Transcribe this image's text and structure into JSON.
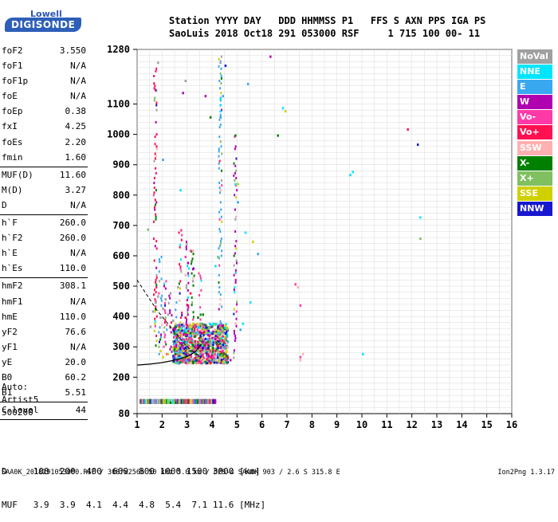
{
  "logo": {
    "line1": "Lowell",
    "line2": "DIGISONDE"
  },
  "header": {
    "line1": "Station YYYY DAY   DDD HHMMSS P1   FFS S AXN PPS IGA PS",
    "line2": "SaoLuis 2018 Oct18 291 053000 RSF     1 715 100 00- 11"
  },
  "params": [
    {
      "name": "foF2",
      "value": "3.550"
    },
    {
      "name": "foF1",
      "value": "N/A"
    },
    {
      "name": "foF1p",
      "value": "N/A"
    },
    {
      "name": "foE",
      "value": "N/A"
    },
    {
      "name": "foEp",
      "value": "0.38"
    },
    {
      "name": "fxI",
      "value": "4.25"
    },
    {
      "name": "foEs",
      "value": "2.20"
    },
    {
      "name": "fmin",
      "value": "1.60"
    },
    {
      "sep": true
    },
    {
      "name": "MUF(D)",
      "value": "11.60"
    },
    {
      "name": "M(D)",
      "value": "3.27"
    },
    {
      "name": "D",
      "value": "N/A"
    },
    {
      "sep": true
    },
    {
      "name": "h`F",
      "value": "260.0"
    },
    {
      "name": "h`F2",
      "value": "260.0"
    },
    {
      "name": "h`E",
      "value": "N/A"
    },
    {
      "name": "h`Es",
      "value": "110.0"
    },
    {
      "sep": true
    },
    {
      "name": "hmF2",
      "value": "308.1"
    },
    {
      "name": "hmF1",
      "value": "N/A"
    },
    {
      "name": "hmE",
      "value": "110.0"
    },
    {
      "name": "yF2",
      "value": "76.6"
    },
    {
      "name": "yF1",
      "value": "N/A"
    },
    {
      "name": "yE",
      "value": "20.0"
    },
    {
      "name": "B0",
      "value": "60.2"
    },
    {
      "name": "B1",
      "value": "5.51"
    },
    {
      "sep": true
    },
    {
      "name": "C-level",
      "value": "44"
    },
    {
      "sep": true
    }
  ],
  "auto": [
    "Auto:",
    "Artist5",
    "500200"
  ],
  "legend": [
    {
      "label": "NoVal",
      "color": "#a0a0a0"
    },
    {
      "label": "NNE",
      "color": "#00e5ff"
    },
    {
      "label": "E",
      "color": "#3aa8f0"
    },
    {
      "label": "W",
      "color": "#b000b0"
    },
    {
      "label": "Vo-",
      "color": "#ff3aa8"
    },
    {
      "label": "Vo+",
      "color": "#ff1050"
    },
    {
      "label": "SSW",
      "color": "#ffb0b0"
    },
    {
      "label": "X-",
      "color": "#008000"
    },
    {
      "label": "X+",
      "color": "#80c060"
    },
    {
      "label": "SSE",
      "color": "#d0d000"
    },
    {
      "label": "NNW",
      "color": "#1818d0"
    }
  ],
  "muf_table": {
    "line1": "D     100  200  400  600  800 1000 1500 3000 [km]",
    "line2": "MUF   3.9  3.9  4.1  4.4  4.8  5.4  7.1 11.6 [MHz]"
  },
  "footer": "SAA0K_2018291053000.RSF / 300fx256h 50 kHz 5.0 km / DPS-4 SAA0K 903 / 2.6 S 315.8 E",
  "version": "Ion2Png 1.3.17",
  "chart_data": {
    "type": "scatter",
    "title": "",
    "xlabel": "",
    "ylabel": "",
    "xlim": [
      1,
      16
    ],
    "ylim": [
      80,
      1280
    ],
    "xticks": [
      1,
      2,
      3,
      4,
      5,
      6,
      7,
      8,
      9,
      10,
      11,
      12,
      13,
      14,
      15,
      16
    ],
    "yticks": [
      80,
      200,
      300,
      400,
      500,
      600,
      700,
      800,
      900,
      1000,
      1100,
      1280
    ],
    "series": [
      {
        "name": "NoVal",
        "color": "#a0a0a0",
        "points": [
          [
            1.6,
            420
          ],
          [
            1.7,
            450
          ],
          [
            1.8,
            470
          ],
          [
            1.9,
            400
          ],
          [
            2.0,
            430
          ],
          [
            2.1,
            460
          ],
          [
            2.2,
            410
          ],
          [
            2.3,
            480
          ],
          [
            2.4,
            390
          ],
          [
            2.6,
            500
          ],
          [
            1.5,
            370
          ],
          [
            1.8,
            1240
          ],
          [
            2.9,
            1180
          ],
          [
            3.2,
            520
          ],
          [
            4.3,
            1240
          ]
        ]
      },
      {
        "name": "NNE",
        "color": "#00e5ff",
        "points": [
          [
            4.3,
            1100
          ],
          [
            4.3,
            1080
          ],
          [
            4.3,
            1120
          ],
          [
            4.9,
            840
          ],
          [
            5.3,
            680
          ],
          [
            6.8,
            1090
          ],
          [
            9.6,
            880
          ],
          [
            9.5,
            870
          ],
          [
            10.0,
            280
          ],
          [
            12.3,
            730
          ],
          [
            4.1,
            570
          ],
          [
            5.2,
            380
          ],
          [
            2.7,
            820
          ],
          [
            5.5,
            450
          ]
        ]
      },
      {
        "name": "E",
        "color": "#3aa8f0",
        "points": [
          [
            4.4,
            1130
          ],
          [
            4.3,
            1060
          ],
          [
            5.0,
            780
          ],
          [
            5.1,
            360
          ],
          [
            3.8,
            330
          ],
          [
            4.0,
            300
          ],
          [
            4.2,
            280
          ],
          [
            3.9,
            350
          ],
          [
            4.6,
            320
          ],
          [
            4.5,
            300
          ],
          [
            2.0,
            920
          ],
          [
            5.4,
            1170
          ],
          [
            5.8,
            610
          ]
        ]
      },
      {
        "name": "W",
        "color": "#b000b0",
        "points": [
          [
            3.4,
            300
          ],
          [
            3.6,
            320
          ],
          [
            3.8,
            310
          ],
          [
            4.1,
            330
          ],
          [
            4.3,
            300
          ],
          [
            3.0,
            580
          ],
          [
            3.2,
            560
          ],
          [
            3.5,
            350
          ],
          [
            4.7,
            260
          ],
          [
            2.8,
            1140
          ],
          [
            1.7,
            1150
          ],
          [
            6.3,
            1260
          ],
          [
            3.7,
            1130
          ]
        ]
      },
      {
        "name": "Vo-",
        "color": "#ff3aa8",
        "points": [
          [
            3.0,
            280
          ],
          [
            3.2,
            290
          ],
          [
            3.3,
            310
          ],
          [
            3.6,
            280
          ],
          [
            3.7,
            300
          ],
          [
            3.9,
            290
          ],
          [
            4.0,
            270
          ],
          [
            4.4,
            290
          ],
          [
            3.1,
            330
          ],
          [
            3.5,
            300
          ],
          [
            7.3,
            510
          ],
          [
            7.5,
            440
          ],
          [
            7.5,
            270
          ],
          [
            3.1,
            620
          ],
          [
            2.9,
            600
          ]
        ]
      },
      {
        "name": "Vo+",
        "color": "#ff1050",
        "points": [
          [
            3.3,
            300
          ],
          [
            3.4,
            320
          ],
          [
            3.5,
            290
          ],
          [
            3.7,
            310
          ],
          [
            3.8,
            280
          ],
          [
            4.1,
            290
          ],
          [
            4.2,
            310
          ],
          [
            3.6,
            350
          ],
          [
            4.6,
            270
          ],
          [
            11.8,
            1020
          ],
          [
            2.9,
            400
          ],
          [
            3.0,
            440
          ],
          [
            3.1,
            480
          ]
        ]
      },
      {
        "name": "SSW",
        "color": "#ffb0b0",
        "points": [
          [
            7.4,
            500
          ],
          [
            7.6,
            280
          ],
          [
            7.5,
            260
          ],
          [
            3.2,
            620
          ],
          [
            2.9,
            540
          ],
          [
            4.9,
            380
          ]
        ]
      },
      {
        "name": "X-",
        "color": "#008000",
        "points": [
          [
            3.1,
            290
          ],
          [
            3.3,
            280
          ],
          [
            3.5,
            310
          ],
          [
            3.8,
            320
          ],
          [
            4.0,
            300
          ],
          [
            4.3,
            280
          ],
          [
            3.6,
            410
          ],
          [
            3.4,
            400
          ],
          [
            2.3,
            120
          ],
          [
            2.5,
            120
          ],
          [
            6.6,
            1000
          ],
          [
            3.9,
            1060
          ],
          [
            4.9,
            1000
          ]
        ]
      },
      {
        "name": "X+",
        "color": "#80c060",
        "points": [
          [
            3.0,
            310
          ],
          [
            3.2,
            300
          ],
          [
            3.4,
            290
          ],
          [
            3.7,
            290
          ],
          [
            3.9,
            310
          ],
          [
            4.2,
            290
          ],
          [
            3.5,
            380
          ],
          [
            1.4,
            690
          ],
          [
            12.3,
            660
          ],
          [
            4.2,
            600
          ]
        ]
      },
      {
        "name": "SSE",
        "color": "#d0d000",
        "points": [
          [
            2.6,
            300
          ],
          [
            2.7,
            280
          ],
          [
            2.8,
            290
          ],
          [
            2.9,
            310
          ],
          [
            3.0,
            270
          ],
          [
            3.1,
            300
          ],
          [
            1.9,
            290
          ],
          [
            2.0,
            270
          ],
          [
            2.2,
            280
          ],
          [
            2.4,
            300
          ],
          [
            6.9,
            1080
          ],
          [
            5.0,
            840
          ],
          [
            5.6,
            650
          ]
        ]
      },
      {
        "name": "NNW",
        "color": "#1818d0",
        "points": [
          [
            3.4,
            310
          ],
          [
            3.6,
            300
          ],
          [
            3.8,
            300
          ],
          [
            4.0,
            310
          ],
          [
            4.2,
            300
          ],
          [
            4.4,
            310
          ],
          [
            3.7,
            330
          ],
          [
            3.5,
            340
          ],
          [
            12.2,
            970
          ],
          [
            4.5,
            1230
          ],
          [
            4.2,
            370
          ]
        ]
      }
    ],
    "bottom_trace": {
      "x_start": 1.1,
      "x_end": 4.1,
      "height": 120
    },
    "vertical_streaks": [
      {
        "x": 1.7,
        "y_from": 300,
        "y_to": 1240,
        "color": "#ff1050"
      },
      {
        "x": 1.9,
        "y_from": 280,
        "y_to": 600,
        "color": "#3aa8f0"
      },
      {
        "x": 2.1,
        "y_from": 280,
        "y_to": 520,
        "color": "#ff3aa8"
      },
      {
        "x": 2.3,
        "y_from": 280,
        "y_to": 480,
        "color": "#b000b0"
      },
      {
        "x": 2.5,
        "y_from": 290,
        "y_to": 450,
        "color": "#3aa8f0"
      },
      {
        "x": 2.7,
        "y_from": 280,
        "y_to": 700,
        "color": "#ff1050"
      },
      {
        "x": 3.0,
        "y_from": 290,
        "y_to": 650,
        "color": "#b000b0"
      },
      {
        "x": 3.2,
        "y_from": 290,
        "y_to": 620,
        "color": "#008000"
      },
      {
        "x": 3.5,
        "y_from": 290,
        "y_to": 560,
        "color": "#ff3aa8"
      },
      {
        "x": 4.3,
        "y_from": 260,
        "y_to": 1260,
        "color": "#3aa8f0"
      },
      {
        "x": 4.9,
        "y_from": 260,
        "y_to": 1000,
        "color": "#b000b0"
      }
    ],
    "dense_region": {
      "x_from": 2.4,
      "x_to": 4.6,
      "y_from": 250,
      "y_to": 380
    },
    "profile_curve": [
      [
        1.0,
        240
      ],
      [
        1.5,
        243
      ],
      [
        2.0,
        248
      ],
      [
        2.5,
        256
      ],
      [
        3.0,
        268
      ],
      [
        3.3,
        282
      ],
      [
        3.5,
        300
      ],
      [
        3.55,
        308
      ]
    ],
    "dashed_curve": [
      [
        1.0,
        520
      ],
      [
        1.4,
        470
      ],
      [
        1.8,
        420
      ],
      [
        2.2,
        380
      ],
      [
        2.6,
        340
      ],
      [
        3.0,
        300
      ],
      [
        3.4,
        275
      ],
      [
        3.55,
        270
      ]
    ]
  }
}
